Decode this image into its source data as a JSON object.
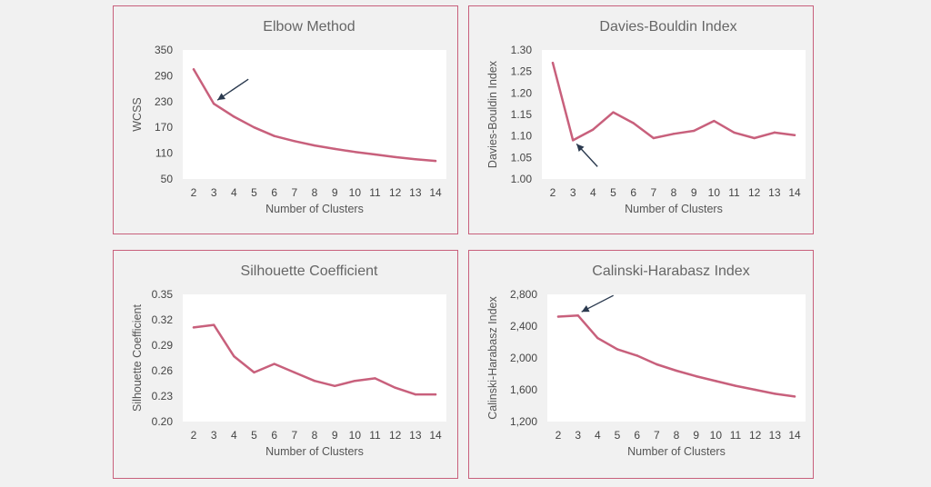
{
  "colors": {
    "series": "#c8607c",
    "arrow": "#2b3a4f",
    "border": "#c8607c"
  },
  "chart_data": [
    {
      "type": "line",
      "title": "Elbow Method",
      "xlabel": "Number of Clusters",
      "ylabel": "WCSS",
      "x": [
        2,
        3,
        4,
        5,
        6,
        7,
        8,
        9,
        10,
        11,
        12,
        13,
        14
      ],
      "yticks": [
        50,
        110,
        170,
        230,
        290,
        350
      ],
      "ytick_labels": [
        "50",
        "110",
        "170",
        "230",
        "290",
        "350"
      ],
      "ylim": [
        50,
        350
      ],
      "series": [
        {
          "values": [
            305,
            225,
            195,
            170,
            150,
            138,
            128,
            120,
            113,
            107,
            101,
            96,
            92
          ]
        }
      ],
      "annotation": {
        "type": "arrow",
        "points_to": {
          "x": 3,
          "y": 225
        }
      }
    },
    {
      "type": "line",
      "title": "Davies-Bouldin Index",
      "xlabel": "Number of Clusters",
      "ylabel": "Davies-Bouldin Index",
      "x": [
        2,
        3,
        4,
        5,
        6,
        7,
        8,
        9,
        10,
        11,
        12,
        13,
        14
      ],
      "yticks": [
        1.0,
        1.05,
        1.1,
        1.15,
        1.2,
        1.25,
        1.3
      ],
      "ytick_labels": [
        "1.00",
        "1.05",
        "1.10",
        "1.15",
        "1.20",
        "1.25",
        "1.30"
      ],
      "ylim": [
        1.0,
        1.3
      ],
      "series": [
        {
          "values": [
            1.27,
            1.09,
            1.115,
            1.155,
            1.13,
            1.095,
            1.105,
            1.112,
            1.135,
            1.108,
            1.095,
            1.108,
            1.102
          ]
        }
      ],
      "annotation": {
        "type": "arrow",
        "points_to": {
          "x": 3,
          "y": 1.09
        }
      }
    },
    {
      "type": "line",
      "title": "Silhouette Coefficient",
      "xlabel": "Number of Clusters",
      "ylabel": "Silhouette Coefficient",
      "x": [
        2,
        3,
        4,
        5,
        6,
        7,
        8,
        9,
        10,
        11,
        12,
        13,
        14
      ],
      "yticks": [
        0.2,
        0.23,
        0.26,
        0.29,
        0.32,
        0.35
      ],
      "ytick_labels": [
        "0.20",
        "0.23",
        "0.26",
        "0.29",
        "0.32",
        "0.35"
      ],
      "ylim": [
        0.2,
        0.35
      ],
      "series": [
        {
          "values": [
            0.311,
            0.314,
            0.277,
            0.258,
            0.268,
            0.258,
            0.248,
            0.242,
            0.248,
            0.251,
            0.24,
            0.232,
            0.232
          ]
        }
      ]
    },
    {
      "type": "line",
      "title": "Calinski-Harabasz Index",
      "xlabel": "Number of Clusters",
      "ylabel": "Calinski-Harabasz Index",
      "x": [
        2,
        3,
        4,
        5,
        6,
        7,
        8,
        9,
        10,
        11,
        12,
        13,
        14
      ],
      "yticks": [
        1200,
        1600,
        2000,
        2400,
        2800
      ],
      "ytick_labels": [
        "1,200",
        "1,600",
        "2,000",
        "2,400",
        "2,800"
      ],
      "ylim": [
        1200,
        2800
      ],
      "series": [
        {
          "values": [
            2520,
            2535,
            2250,
            2110,
            2030,
            1920,
            1840,
            1770,
            1710,
            1650,
            1600,
            1550,
            1515
          ]
        }
      ],
      "annotation": {
        "type": "arrow",
        "points_to": {
          "x": 3,
          "y": 2535
        }
      }
    }
  ]
}
